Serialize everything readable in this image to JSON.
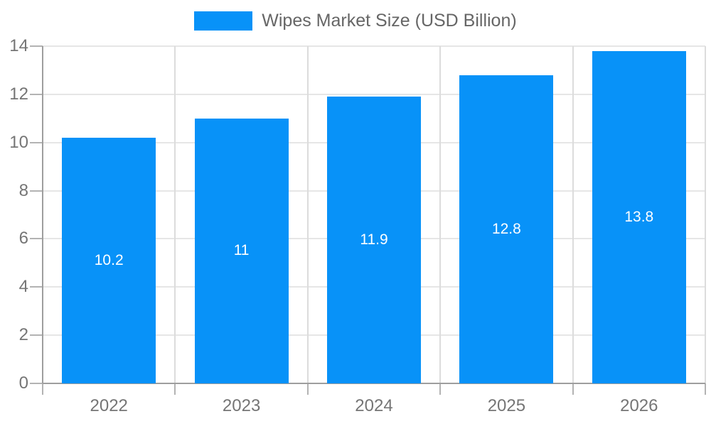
{
  "chart_data": {
    "type": "bar",
    "title": "Wipes Market Size (USD Billion)",
    "legend": [
      {
        "label": "Wipes Market Size (USD Billion)"
      }
    ],
    "legend_position": "top-center",
    "categories": [
      "2022",
      "2023",
      "2024",
      "2025",
      "2026"
    ],
    "series": [
      {
        "name": "Wipes Market Size (USD Billion)",
        "values": [
          10.2,
          11,
          11.9,
          12.8,
          13.8
        ],
        "value_labels": [
          "10.2",
          "11",
          "11.9",
          "12.8",
          "13.8"
        ]
      }
    ],
    "xlabel": "",
    "ylabel": "",
    "ylim": [
      0,
      14
    ],
    "y_ticks": [
      0,
      2,
      4,
      6,
      8,
      10,
      12,
      14
    ],
    "grid": true,
    "value_label_position": "inside-center",
    "colors": {
      "bar": "#0892f8",
      "grid_horizontal": "#e6e6e6",
      "grid_vertical": "#dcdcdc",
      "axis": "#9e9e9e",
      "tick_mark": "#b3b3b3",
      "tick_text": "#757575",
      "legend_text": "#666666",
      "bar_label_text": "#ffffff",
      "background": "#ffffff"
    }
  }
}
